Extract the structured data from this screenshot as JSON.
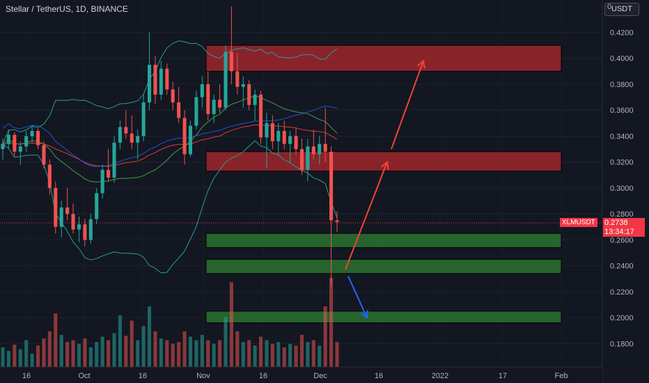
{
  "header": {
    "title": "Stellar / TetherUS, 1D, BINANCE",
    "currency_button": "USDT",
    "top_axis_partial": "0"
  },
  "price_label": {
    "symbol": "XLMUSDT",
    "value": "0.2738",
    "countdown": "13:34:17"
  },
  "colors": {
    "background": "#131722",
    "up": "#26a69a",
    "down": "#ef5350",
    "resistance_zone": "#b2282e",
    "support_zone": "#2e7d32",
    "bb_band": "#2a9d8f",
    "ema_red": "#e53935",
    "ma_blue": "#2962ff",
    "arrow_up": "#f44336",
    "arrow_down": "#2962ff"
  },
  "chart_data": {
    "type": "candlestick",
    "ylim": [
      0.17,
      0.44
    ],
    "y_ticks": [
      "0.4200",
      "0.4000",
      "0.3800",
      "0.3600",
      "0.3400",
      "0.3200",
      "0.3000",
      "0.2800",
      "0.2600",
      "0.2400",
      "0.2200",
      "0.2000",
      "0.1800"
    ],
    "y_tick_values": [
      0.42,
      0.4,
      0.38,
      0.36,
      0.34,
      0.32,
      0.3,
      0.28,
      0.26,
      0.24,
      0.22,
      0.2,
      0.18
    ],
    "x_ticks": [
      "16",
      "Oct",
      "16",
      "Nov",
      "16",
      "Dec",
      "16",
      "2022",
      "17",
      "Feb"
    ],
    "current_price": 0.2738,
    "zones": [
      {
        "kind": "resistance",
        "from": 0.39,
        "to": 0.41
      },
      {
        "kind": "resistance",
        "from": 0.313,
        "to": 0.328
      },
      {
        "kind": "support",
        "from": 0.254,
        "to": 0.265
      },
      {
        "kind": "support",
        "from": 0.234,
        "to": 0.245
      },
      {
        "kind": "support",
        "from": 0.196,
        "to": 0.205
      }
    ],
    "arrows": [
      {
        "dir": "up",
        "from": [
          0.237
        ],
        "to": [
          0.32
        ]
      },
      {
        "dir": "up",
        "from": [
          0.33
        ],
        "to": [
          0.398
        ]
      },
      {
        "dir": "down",
        "from": [
          0.23
        ],
        "to": [
          0.2
        ]
      }
    ],
    "candles": [
      [
        0.33,
        0.338,
        0.322,
        0.334
      ],
      [
        0.334,
        0.345,
        0.33,
        0.341
      ],
      [
        0.341,
        0.343,
        0.325,
        0.328
      ],
      [
        0.328,
        0.336,
        0.318,
        0.332
      ],
      [
        0.332,
        0.344,
        0.328,
        0.34
      ],
      [
        0.34,
        0.348,
        0.335,
        0.344
      ],
      [
        0.344,
        0.346,
        0.33,
        0.333
      ],
      [
        0.333,
        0.336,
        0.315,
        0.318
      ],
      [
        0.318,
        0.322,
        0.295,
        0.3
      ],
      [
        0.3,
        0.305,
        0.265,
        0.27
      ],
      [
        0.27,
        0.29,
        0.262,
        0.285
      ],
      [
        0.285,
        0.3,
        0.275,
        0.28
      ],
      [
        0.28,
        0.288,
        0.265,
        0.268
      ],
      [
        0.268,
        0.278,
        0.258,
        0.272
      ],
      [
        0.272,
        0.276,
        0.255,
        0.26
      ],
      [
        0.26,
        0.28,
        0.257,
        0.276
      ],
      [
        0.276,
        0.3,
        0.272,
        0.296
      ],
      [
        0.296,
        0.318,
        0.292,
        0.314
      ],
      [
        0.314,
        0.33,
        0.305,
        0.308
      ],
      [
        0.308,
        0.34,
        0.304,
        0.335
      ],
      [
        0.335,
        0.352,
        0.33,
        0.347
      ],
      [
        0.347,
        0.36,
        0.338,
        0.342
      ],
      [
        0.342,
        0.356,
        0.33,
        0.335
      ],
      [
        0.335,
        0.345,
        0.322,
        0.34
      ],
      [
        0.34,
        0.372,
        0.336,
        0.366
      ],
      [
        0.366,
        0.42,
        0.36,
        0.395
      ],
      [
        0.395,
        0.402,
        0.365,
        0.372
      ],
      [
        0.372,
        0.398,
        0.368,
        0.392
      ],
      [
        0.392,
        0.396,
        0.372,
        0.376
      ],
      [
        0.376,
        0.382,
        0.36,
        0.366
      ],
      [
        0.366,
        0.378,
        0.35,
        0.354
      ],
      [
        0.354,
        0.36,
        0.318,
        0.326
      ],
      [
        0.326,
        0.352,
        0.324,
        0.348
      ],
      [
        0.348,
        0.375,
        0.345,
        0.37
      ],
      [
        0.37,
        0.386,
        0.362,
        0.38
      ],
      [
        0.38,
        0.39,
        0.352,
        0.357
      ],
      [
        0.357,
        0.372,
        0.35,
        0.368
      ],
      [
        0.368,
        0.38,
        0.358,
        0.362
      ],
      [
        0.362,
        0.41,
        0.36,
        0.405
      ],
      [
        0.405,
        0.44,
        0.38,
        0.39
      ],
      [
        0.39,
        0.404,
        0.372,
        0.378
      ],
      [
        0.378,
        0.386,
        0.362,
        0.38
      ],
      [
        0.38,
        0.383,
        0.36,
        0.364
      ],
      [
        0.364,
        0.376,
        0.352,
        0.372
      ],
      [
        0.372,
        0.375,
        0.334,
        0.339
      ],
      [
        0.339,
        0.358,
        0.315,
        0.35
      ],
      [
        0.35,
        0.356,
        0.33,
        0.336
      ],
      [
        0.336,
        0.35,
        0.325,
        0.344
      ],
      [
        0.344,
        0.352,
        0.33,
        0.334
      ],
      [
        0.334,
        0.344,
        0.32,
        0.34
      ],
      [
        0.34,
        0.346,
        0.326,
        0.33
      ],
      [
        0.33,
        0.338,
        0.31,
        0.314
      ],
      [
        0.314,
        0.338,
        0.305,
        0.332
      ],
      [
        0.332,
        0.345,
        0.322,
        0.326
      ],
      [
        0.326,
        0.34,
        0.318,
        0.334
      ],
      [
        0.334,
        0.362,
        0.32,
        0.328
      ],
      [
        0.328,
        0.332,
        0.224,
        0.275
      ],
      [
        0.275,
        0.282,
        0.266,
        0.2738
      ]
    ],
    "volume_relative": [
      0.22,
      0.18,
      0.25,
      0.2,
      0.3,
      0.15,
      0.24,
      0.32,
      0.4,
      0.6,
      0.36,
      0.28,
      0.3,
      0.26,
      0.32,
      0.22,
      0.28,
      0.34,
      0.3,
      0.38,
      0.58,
      0.35,
      0.52,
      0.3,
      0.46,
      0.68,
      0.4,
      0.32,
      0.3,
      0.26,
      0.28,
      0.4,
      0.34,
      0.3,
      0.36,
      0.3,
      0.26,
      0.3,
      0.56,
      0.95,
      0.4,
      0.28,
      0.3,
      0.24,
      0.34,
      0.3,
      0.26,
      0.28,
      0.22,
      0.26,
      0.24,
      0.36,
      0.28,
      0.3,
      0.24,
      0.68,
      1.0,
      0.28
    ]
  }
}
